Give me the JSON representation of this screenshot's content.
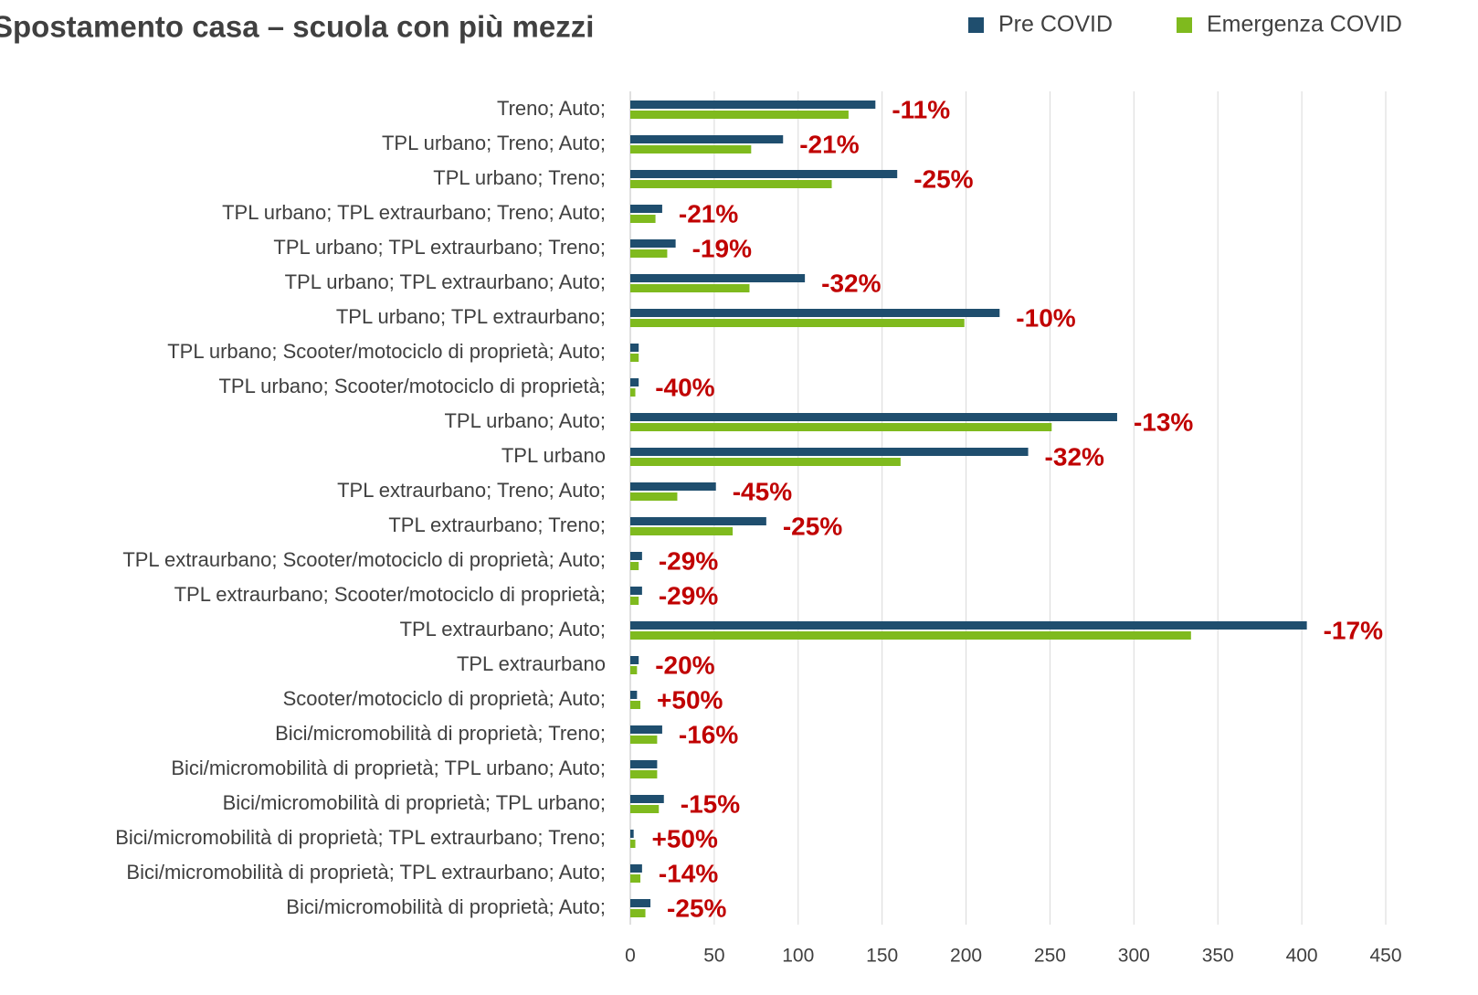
{
  "chart_data": {
    "type": "barh",
    "title": "Spostamento casa – scuola con più mezzi",
    "categories": [
      "Treno; Auto;",
      "TPL urbano; Treno; Auto;",
      "TPL urbano; Treno;",
      "TPL urbano; TPL extraurbano; Treno; Auto;",
      "TPL urbano; TPL extraurbano; Treno;",
      "TPL urbano; TPL extraurbano; Auto;",
      "TPL urbano; TPL extraurbano;",
      "TPL urbano; Scooter/motociclo di proprietà; Auto;",
      "TPL urbano; Scooter/motociclo di proprietà;",
      "TPL urbano; Auto;",
      "TPL urbano",
      "TPL extraurbano; Treno; Auto;",
      "TPL extraurbano; Treno;",
      "TPL extraurbano; Scooter/motociclo di proprietà; Auto;",
      "TPL extraurbano; Scooter/motociclo di proprietà;",
      "TPL extraurbano; Auto;",
      "TPL extraurbano",
      "Scooter/motociclo di proprietà; Auto;",
      "Bici/micromobilità di proprietà; Treno;",
      "Bici/micromobilità di proprietà; TPL urbano; Auto;",
      "Bici/micromobilità di proprietà; TPL urbano;",
      "Bici/micromobilità di proprietà; TPL extraurbano; Treno;",
      "Bici/micromobilità di proprietà; TPL extraurbano; Auto;",
      "Bici/micromobilità di proprietà; Auto;"
    ],
    "series": [
      {
        "name": "Pre COVID",
        "color": "#1f4e6e",
        "values": [
          146,
          91,
          159,
          19,
          27,
          104,
          220,
          5,
          5,
          290,
          237,
          51,
          81,
          7,
          7,
          403,
          5,
          4,
          19,
          16,
          20,
          2,
          7,
          12
        ]
      },
      {
        "name": "Emergenza COVID",
        "color": "#7fba1e",
        "values": [
          130,
          72,
          120,
          15,
          22,
          71,
          199,
          5,
          3,
          251,
          161,
          28,
          61,
          5,
          5,
          334,
          4,
          6,
          16,
          16,
          17,
          3,
          6,
          9
        ]
      }
    ],
    "annotations": [
      "-11%",
      "-21%",
      "-25%",
      "-21%",
      "-19%",
      "-32%",
      "-10%",
      null,
      "-40%",
      "-13%",
      "-32%",
      "-45%",
      "-25%",
      "-29%",
      "-29%",
      "-17%",
      "-20%",
      "+50%",
      "-16%",
      null,
      "-15%",
      "+50%",
      "-14%",
      "-25%"
    ],
    "xlim": [
      0,
      450
    ],
    "xticks": [
      0,
      50,
      100,
      150,
      200,
      250,
      300,
      350,
      400,
      450
    ],
    "grid": true,
    "legend": "top-right"
  }
}
